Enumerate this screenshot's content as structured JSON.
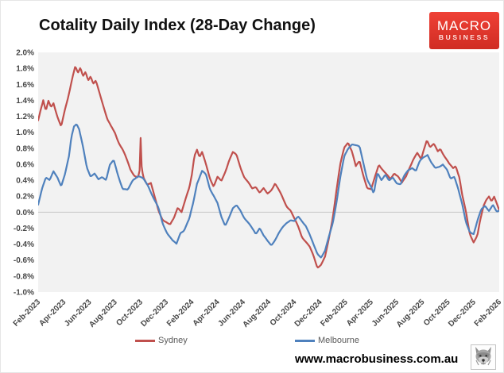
{
  "chart_data": {
    "type": "line",
    "title": "Cotality Daily Index (28-Day Change)",
    "xlabel": "",
    "ylabel": "",
    "ylim": [
      -1.0,
      2.0
    ],
    "y_tick_step": 0.2,
    "y_tick_labels": [
      "2.0%",
      "1.8%",
      "1.6%",
      "1.4%",
      "1.2%",
      "1.0%",
      "0.8%",
      "0.6%",
      "0.4%",
      "0.2%",
      "0.0%",
      "-0.2%",
      "-0.4%",
      "-0.6%",
      "-0.8%",
      "-1.0%"
    ],
    "x_range": [
      0,
      36
    ],
    "x_tick_every": 2,
    "x_tick_labels": [
      "Feb-2023",
      "Apr-2023",
      "Jun-2023",
      "Aug-2023",
      "Oct-2023",
      "Dec-2023",
      "Feb-2024",
      "Apr-2024",
      "Jun-2024",
      "Aug-2024",
      "Oct-2024",
      "Dec-2024",
      "Feb-2025",
      "Apr-2025",
      "Jun-2025",
      "Aug-2025",
      "Oct-2025",
      "Dec-2025",
      "Feb-2026"
    ],
    "legend_position": "bottom",
    "grid": "zero-line-only",
    "plot_bg": "#f2f2f2",
    "zero_line_color": "#c6c6c6",
    "series": [
      {
        "name": "Sydney",
        "color": "#c0504d",
        "jitter": 0.028,
        "points": [
          [
            0,
            1.15
          ],
          [
            0.2,
            1.3
          ],
          [
            0.4,
            1.42
          ],
          [
            0.6,
            1.28
          ],
          [
            0.8,
            1.4
          ],
          [
            1.0,
            1.32
          ],
          [
            1.2,
            1.38
          ],
          [
            1.5,
            1.22
          ],
          [
            1.8,
            1.08
          ],
          [
            2.1,
            1.28
          ],
          [
            2.3,
            1.4
          ],
          [
            2.5,
            1.55
          ],
          [
            2.7,
            1.7
          ],
          [
            2.9,
            1.82
          ],
          [
            3.1,
            1.72
          ],
          [
            3.3,
            1.78
          ],
          [
            3.5,
            1.68
          ],
          [
            3.7,
            1.75
          ],
          [
            3.9,
            1.65
          ],
          [
            4.1,
            1.7
          ],
          [
            4.3,
            1.6
          ],
          [
            4.5,
            1.64
          ],
          [
            4.8,
            1.5
          ],
          [
            5.1,
            1.35
          ],
          [
            5.4,
            1.18
          ],
          [
            5.7,
            1.08
          ],
          [
            6.0,
            1.0
          ],
          [
            6.3,
            0.88
          ],
          [
            6.6,
            0.78
          ],
          [
            6.9,
            0.65
          ],
          [
            7.2,
            0.52
          ],
          [
            7.5,
            0.45
          ],
          [
            7.8,
            0.42
          ],
          [
            7.92,
            0.5
          ],
          [
            7.99,
            0.95
          ],
          [
            8.08,
            0.55
          ],
          [
            8.2,
            0.42
          ],
          [
            8.5,
            0.35
          ],
          [
            8.8,
            0.38
          ],
          [
            9.1,
            0.2
          ],
          [
            9.4,
            0.02
          ],
          [
            9.7,
            -0.07
          ],
          [
            10.0,
            -0.1
          ],
          [
            10.3,
            -0.15
          ],
          [
            10.6,
            -0.08
          ],
          [
            10.9,
            0.06
          ],
          [
            11.2,
            0.0
          ],
          [
            11.5,
            0.14
          ],
          [
            11.8,
            0.28
          ],
          [
            12.0,
            0.45
          ],
          [
            12.2,
            0.7
          ],
          [
            12.4,
            0.78
          ],
          [
            12.6,
            0.68
          ],
          [
            12.8,
            0.74
          ],
          [
            13.1,
            0.6
          ],
          [
            13.4,
            0.45
          ],
          [
            13.7,
            0.34
          ],
          [
            14.0,
            0.45
          ],
          [
            14.3,
            0.4
          ],
          [
            14.6,
            0.52
          ],
          [
            14.9,
            0.65
          ],
          [
            15.2,
            0.74
          ],
          [
            15.5,
            0.7
          ],
          [
            15.8,
            0.55
          ],
          [
            16.1,
            0.42
          ],
          [
            16.4,
            0.35
          ],
          [
            16.7,
            0.28
          ],
          [
            17.0,
            0.32
          ],
          [
            17.3,
            0.25
          ],
          [
            17.6,
            0.3
          ],
          [
            17.9,
            0.24
          ],
          [
            18.2,
            0.3
          ],
          [
            18.5,
            0.38
          ],
          [
            18.8,
            0.28
          ],
          [
            19.1,
            0.18
          ],
          [
            19.4,
            0.08
          ],
          [
            19.7,
            0.02
          ],
          [
            20.0,
            -0.1
          ],
          [
            20.3,
            -0.2
          ],
          [
            20.6,
            -0.32
          ],
          [
            20.9,
            -0.38
          ],
          [
            21.2,
            -0.45
          ],
          [
            21.5,
            -0.55
          ],
          [
            21.8,
            -0.68
          ],
          [
            22.1,
            -0.64
          ],
          [
            22.4,
            -0.55
          ],
          [
            22.7,
            -0.32
          ],
          [
            23.0,
            -0.05
          ],
          [
            23.3,
            0.3
          ],
          [
            23.6,
            0.6
          ],
          [
            23.9,
            0.8
          ],
          [
            24.2,
            0.87
          ],
          [
            24.5,
            0.75
          ],
          [
            24.8,
            0.55
          ],
          [
            25.1,
            0.62
          ],
          [
            25.4,
            0.45
          ],
          [
            25.7,
            0.3
          ],
          [
            26.0,
            0.28
          ],
          [
            26.3,
            0.45
          ],
          [
            26.6,
            0.62
          ],
          [
            26.9,
            0.55
          ],
          [
            27.2,
            0.48
          ],
          [
            27.5,
            0.42
          ],
          [
            27.8,
            0.5
          ],
          [
            28.1,
            0.45
          ],
          [
            28.4,
            0.35
          ],
          [
            28.7,
            0.42
          ],
          [
            29.0,
            0.55
          ],
          [
            29.3,
            0.65
          ],
          [
            29.6,
            0.72
          ],
          [
            29.9,
            0.65
          ],
          [
            30.1,
            0.78
          ],
          [
            30.35,
            0.92
          ],
          [
            30.6,
            0.82
          ],
          [
            30.9,
            0.86
          ],
          [
            31.2,
            0.78
          ],
          [
            31.4,
            0.82
          ],
          [
            31.7,
            0.72
          ],
          [
            31.9,
            0.66
          ],
          [
            32.1,
            0.6
          ],
          [
            32.4,
            0.55
          ],
          [
            32.6,
            0.58
          ],
          [
            32.9,
            0.42
          ],
          [
            33.1,
            0.2
          ],
          [
            33.4,
            -0.02
          ],
          [
            33.7,
            -0.28
          ],
          [
            34.0,
            -0.38
          ],
          [
            34.3,
            -0.3
          ],
          [
            34.5,
            -0.12
          ],
          [
            34.8,
            0.1
          ],
          [
            35.0,
            0.18
          ],
          [
            35.2,
            0.22
          ],
          [
            35.4,
            0.15
          ],
          [
            35.6,
            0.2
          ],
          [
            35.8,
            0.12
          ],
          [
            36.0,
            0.04
          ]
        ]
      },
      {
        "name": "Melbourne",
        "color": "#4f81bd",
        "jitter": 0.024,
        "points": [
          [
            0,
            0.08
          ],
          [
            0.3,
            0.3
          ],
          [
            0.6,
            0.44
          ],
          [
            0.9,
            0.4
          ],
          [
            1.2,
            0.52
          ],
          [
            1.5,
            0.46
          ],
          [
            1.8,
            0.34
          ],
          [
            2.1,
            0.48
          ],
          [
            2.4,
            0.7
          ],
          [
            2.6,
            0.95
          ],
          [
            2.8,
            1.08
          ],
          [
            3.0,
            1.1
          ],
          [
            3.2,
            1.02
          ],
          [
            3.5,
            0.8
          ],
          [
            3.8,
            0.55
          ],
          [
            4.1,
            0.44
          ],
          [
            4.4,
            0.47
          ],
          [
            4.7,
            0.4
          ],
          [
            5.0,
            0.45
          ],
          [
            5.3,
            0.42
          ],
          [
            5.6,
            0.6
          ],
          [
            5.9,
            0.66
          ],
          [
            6.2,
            0.5
          ],
          [
            6.6,
            0.3
          ],
          [
            7.0,
            0.27
          ],
          [
            7.4,
            0.4
          ],
          [
            7.8,
            0.44
          ],
          [
            8.2,
            0.4
          ],
          [
            8.6,
            0.32
          ],
          [
            9.0,
            0.18
          ],
          [
            9.4,
            0.05
          ],
          [
            9.7,
            -0.12
          ],
          [
            10.1,
            -0.25
          ],
          [
            10.5,
            -0.35
          ],
          [
            10.8,
            -0.39
          ],
          [
            11.1,
            -0.25
          ],
          [
            11.4,
            -0.23
          ],
          [
            11.8,
            -0.1
          ],
          [
            12.1,
            0.1
          ],
          [
            12.4,
            0.35
          ],
          [
            12.8,
            0.5
          ],
          [
            13.1,
            0.46
          ],
          [
            13.4,
            0.3
          ],
          [
            13.7,
            0.22
          ],
          [
            14.0,
            0.12
          ],
          [
            14.3,
            -0.05
          ],
          [
            14.6,
            -0.15
          ],
          [
            14.9,
            -0.05
          ],
          [
            15.2,
            0.05
          ],
          [
            15.5,
            0.08
          ],
          [
            15.8,
            0.02
          ],
          [
            16.1,
            -0.08
          ],
          [
            16.4,
            -0.15
          ],
          [
            16.7,
            -0.22
          ],
          [
            17.0,
            -0.28
          ],
          [
            17.3,
            -0.2
          ],
          [
            17.6,
            -0.3
          ],
          [
            17.9,
            -0.36
          ],
          [
            18.2,
            -0.4
          ],
          [
            18.5,
            -0.33
          ],
          [
            18.8,
            -0.25
          ],
          [
            19.1,
            -0.18
          ],
          [
            19.4,
            -0.12
          ],
          [
            19.7,
            -0.09
          ],
          [
            20.0,
            -0.12
          ],
          [
            20.3,
            -0.07
          ],
          [
            20.6,
            -0.12
          ],
          [
            20.9,
            -0.18
          ],
          [
            21.2,
            -0.3
          ],
          [
            21.5,
            -0.42
          ],
          [
            21.8,
            -0.52
          ],
          [
            22.1,
            -0.56
          ],
          [
            22.4,
            -0.48
          ],
          [
            22.7,
            -0.3
          ],
          [
            23.0,
            -0.12
          ],
          [
            23.3,
            0.15
          ],
          [
            23.6,
            0.45
          ],
          [
            23.9,
            0.7
          ],
          [
            24.2,
            0.8
          ],
          [
            24.5,
            0.85
          ],
          [
            24.8,
            0.82
          ],
          [
            25.1,
            0.8
          ],
          [
            25.4,
            0.6
          ],
          [
            25.7,
            0.4
          ],
          [
            26.0,
            0.3
          ],
          [
            26.2,
            0.22
          ],
          [
            26.5,
            0.5
          ],
          [
            26.8,
            0.42
          ],
          [
            27.1,
            0.48
          ],
          [
            27.4,
            0.4
          ],
          [
            27.7,
            0.45
          ],
          [
            28.0,
            0.38
          ],
          [
            28.3,
            0.35
          ],
          [
            28.6,
            0.45
          ],
          [
            28.9,
            0.52
          ],
          [
            29.2,
            0.55
          ],
          [
            29.5,
            0.5
          ],
          [
            29.8,
            0.62
          ],
          [
            30.1,
            0.68
          ],
          [
            30.4,
            0.72
          ],
          [
            30.7,
            0.62
          ],
          [
            31.0,
            0.55
          ],
          [
            31.3,
            0.58
          ],
          [
            31.6,
            0.62
          ],
          [
            31.9,
            0.55
          ],
          [
            32.2,
            0.42
          ],
          [
            32.5,
            0.45
          ],
          [
            32.8,
            0.3
          ],
          [
            33.1,
            0.1
          ],
          [
            33.4,
            -0.15
          ],
          [
            33.7,
            -0.26
          ],
          [
            34.0,
            -0.28
          ],
          [
            34.3,
            -0.12
          ],
          [
            34.6,
            0.02
          ],
          [
            34.9,
            0.08
          ],
          [
            35.2,
            0.03
          ],
          [
            35.5,
            0.1
          ],
          [
            35.8,
            0.01
          ],
          [
            36.0,
            0.03
          ]
        ]
      }
    ]
  },
  "logo": {
    "line1": "MACRO",
    "line2": "BUSINESS",
    "bg": "#e23a2e"
  },
  "footer": {
    "url": "www.macrobusiness.com.au"
  }
}
